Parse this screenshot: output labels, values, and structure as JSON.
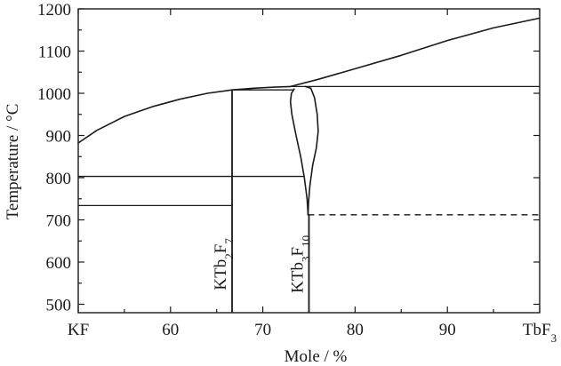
{
  "chart_data": {
    "type": "line",
    "xlabel": "Mole / %",
    "ylabel": "Temperature / °C",
    "xlim": [
      50,
      100
    ],
    "ylim": [
      480,
      1200
    ],
    "x_ticks": [
      {
        "value": 50,
        "label": "KF",
        "sub": ""
      },
      {
        "value": 60,
        "label": "60",
        "sub": ""
      },
      {
        "value": 70,
        "label": "70",
        "sub": ""
      },
      {
        "value": 80,
        "label": "80",
        "sub": ""
      },
      {
        "value": 90,
        "label": "90",
        "sub": ""
      },
      {
        "value": 100,
        "label": "TbF",
        "sub": "3"
      }
    ],
    "y_ticks": [
      {
        "value": 500,
        "label": "500"
      },
      {
        "value": 600,
        "label": "600"
      },
      {
        "value": 700,
        "label": "700"
      },
      {
        "value": 800,
        "label": "800"
      },
      {
        "value": 900,
        "label": "900"
      },
      {
        "value": 1000,
        "label": "1000"
      },
      {
        "value": 1100,
        "label": "1100"
      },
      {
        "value": 1200,
        "label": "1200"
      }
    ],
    "curves": [
      {
        "points": [
          [
            50,
            882
          ],
          [
            52,
            912
          ],
          [
            55,
            945
          ],
          [
            58,
            968
          ],
          [
            61,
            986
          ],
          [
            64,
            1000
          ],
          [
            66.67,
            1008
          ]
        ]
      },
      {
        "points": [
          [
            66.67,
            1008
          ],
          [
            69,
            1012
          ],
          [
            71.5,
            1015
          ],
          [
            73,
            1016
          ]
        ]
      },
      {
        "points": [
          [
            73,
            1016
          ],
          [
            76,
            1033
          ],
          [
            80,
            1058
          ],
          [
            85,
            1090
          ],
          [
            90,
            1125
          ],
          [
            95,
            1155
          ],
          [
            100,
            1178
          ]
        ]
      },
      {
        "points": [
          [
            74.6,
            1016
          ],
          [
            75.2,
            1012
          ],
          [
            75.6,
            990
          ],
          [
            75.9,
            950
          ],
          [
            76,
            910
          ],
          [
            75.8,
            870
          ],
          [
            75.4,
            830
          ],
          [
            75.1,
            780
          ],
          [
            74.95,
            740
          ],
          [
            74.9,
            712
          ]
        ]
      },
      {
        "points": [
          [
            73.4,
            1010
          ],
          [
            73.1,
            1000
          ],
          [
            73.0,
            980
          ],
          [
            73.15,
            950
          ],
          [
            73.6,
            900
          ],
          [
            74.1,
            850
          ],
          [
            74.5,
            800
          ],
          [
            74.8,
            750
          ],
          [
            74.9,
            712
          ]
        ]
      }
    ],
    "horizontal_lines": [
      {
        "y": 1016,
        "x_start": 73,
        "x_end": 100
      },
      {
        "y": 1008,
        "x_start": 66.67,
        "x_end": 73.4
      },
      {
        "y": 803,
        "x_start": 50,
        "x_end": 74.5
      },
      {
        "y": 734,
        "x_start": 50,
        "x_end": 66.67
      }
    ],
    "dashed_lines": [
      {
        "y": 712,
        "x_start": 74.9,
        "x_end": 100
      }
    ],
    "vertical_lines": [
      {
        "x": 66.67,
        "y_start": 480,
        "y_end": 1008
      },
      {
        "x": 75,
        "y_start": 480,
        "y_end": 712
      }
    ],
    "compound_labels": [
      {
        "parts": [
          {
            "t": "KTb",
            "sub": false
          },
          {
            "t": "2",
            "sub": true
          },
          {
            "t": "F",
            "sub": false
          },
          {
            "t": "7",
            "sub": true
          }
        ],
        "x": 66.67,
        "y": 595
      },
      {
        "parts": [
          {
            "t": "KTb",
            "sub": false
          },
          {
            "t": "3",
            "sub": true
          },
          {
            "t": "F",
            "sub": false
          },
          {
            "t": "10",
            "sub": true
          }
        ],
        "x": 75,
        "y": 595
      }
    ]
  }
}
